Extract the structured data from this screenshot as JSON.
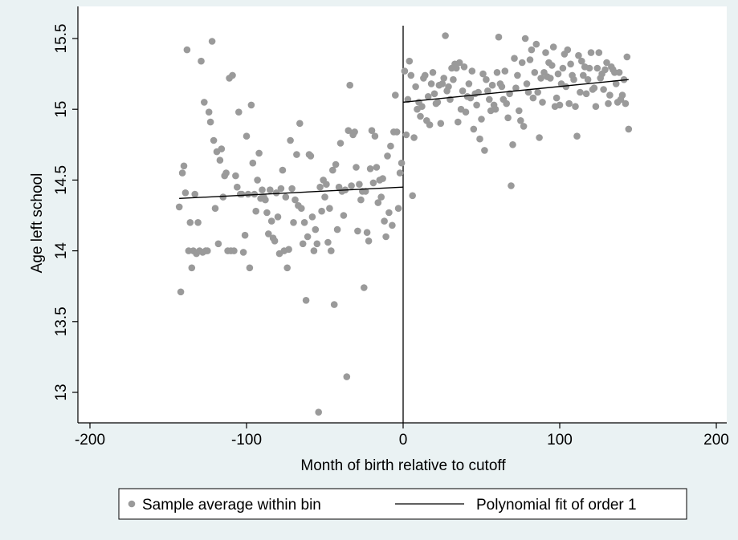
{
  "chart_data": {
    "type": "scatter",
    "title": "",
    "xlabel": "Month of birth relative to cutoff",
    "ylabel": "Age left school",
    "xlim": [
      -200,
      200
    ],
    "ylim": [
      12.86,
      15.5
    ],
    "x_ticks": [
      -200,
      -100,
      0,
      100,
      200
    ],
    "x_tick_labels": [
      "-200",
      "-100",
      "0",
      "100",
      "200"
    ],
    "y_ticks": [
      13,
      13.5,
      14,
      14.5,
      15,
      15.5
    ],
    "y_tick_labels": [
      "13",
      "13.5",
      "14",
      "14.5",
      "15",
      "15.5"
    ],
    "cutoff_line_x": 0,
    "grid": false,
    "legend_position": "bottom",
    "colors": {
      "points": "#9a9a9a",
      "fit": "#000000",
      "plot_bg": "#ffffff",
      "page_bg": "#eaf2f3"
    },
    "series": [
      {
        "name": "Sample average within bin",
        "kind": "scatter",
        "points": [
          [
            -143,
            14.31
          ],
          [
            -142,
            13.71
          ],
          [
            -141,
            14.55
          ],
          [
            -140,
            14.6
          ],
          [
            -139,
            14.41
          ],
          [
            -138,
            15.42
          ],
          [
            -137,
            14.0
          ],
          [
            -136,
            14.2
          ],
          [
            -135,
            13.88
          ],
          [
            -134,
            14.0
          ],
          [
            -133,
            14.4
          ],
          [
            -132,
            13.98
          ],
          [
            -131,
            14.2
          ],
          [
            -130,
            14.0
          ],
          [
            -129,
            15.34
          ],
          [
            -128,
            13.99
          ],
          [
            -127,
            15.05
          ],
          [
            -126,
            14.0
          ],
          [
            -125,
            14.0
          ],
          [
            -124,
            14.98
          ],
          [
            -123,
            14.91
          ],
          [
            -122,
            15.48
          ],
          [
            -121,
            14.78
          ],
          [
            -120,
            14.3
          ],
          [
            -119,
            14.7
          ],
          [
            -118,
            14.05
          ],
          [
            -117,
            14.64
          ],
          [
            -116,
            14.72
          ],
          [
            -115,
            14.38
          ],
          [
            -114,
            14.53
          ],
          [
            -113,
            14.55
          ],
          [
            -112,
            14.0
          ],
          [
            -111,
            15.22
          ],
          [
            -110,
            14.0
          ],
          [
            -109,
            15.24
          ],
          [
            -108,
            14.0
          ],
          [
            -107,
            14.53
          ],
          [
            -106,
            14.45
          ],
          [
            -105,
            14.98
          ],
          [
            -104,
            14.4
          ],
          [
            -103,
            14.4
          ],
          [
            -102,
            13.99
          ],
          [
            -101,
            14.11
          ],
          [
            -100,
            14.81
          ],
          [
            -99,
            14.4
          ],
          [
            -98,
            13.88
          ],
          [
            -97,
            15.03
          ],
          [
            -96,
            14.62
          ],
          [
            -95,
            14.4
          ],
          [
            -94,
            14.28
          ],
          [
            -93,
            14.5
          ],
          [
            -92,
            14.69
          ],
          [
            -91,
            14.37
          ],
          [
            -90,
            14.43
          ],
          [
            -89,
            14.38
          ],
          [
            -88,
            14.36
          ],
          [
            -87,
            14.27
          ],
          [
            -86,
            14.12
          ],
          [
            -85,
            14.43
          ],
          [
            -84,
            14.21
          ],
          [
            -83,
            14.09
          ],
          [
            -82,
            14.07
          ],
          [
            -81,
            14.41
          ],
          [
            -80,
            14.24
          ],
          [
            -79,
            13.98
          ],
          [
            -78,
            14.44
          ],
          [
            -77,
            14.57
          ],
          [
            -76,
            14.0
          ],
          [
            -75,
            14.38
          ],
          [
            -74,
            13.88
          ],
          [
            -73,
            14.01
          ],
          [
            -72,
            14.78
          ],
          [
            -71,
            14.44
          ],
          [
            -70,
            14.2
          ],
          [
            -69,
            14.36
          ],
          [
            -68,
            14.68
          ],
          [
            -67,
            14.32
          ],
          [
            -66,
            14.9
          ],
          [
            -65,
            14.3
          ],
          [
            -64,
            14.05
          ],
          [
            -63,
            14.2
          ],
          [
            -62,
            13.65
          ],
          [
            -61,
            14.1
          ],
          [
            -60,
            14.68
          ],
          [
            -59,
            14.67
          ],
          [
            -58,
            14.24
          ],
          [
            -57,
            14.0
          ],
          [
            -56,
            14.15
          ],
          [
            -55,
            14.05
          ],
          [
            -54,
            12.86
          ],
          [
            -53,
            14.45
          ],
          [
            -52,
            14.28
          ],
          [
            -51,
            14.5
          ],
          [
            -50,
            14.38
          ],
          [
            -49,
            14.47
          ],
          [
            -48,
            14.06
          ],
          [
            -47,
            14.3
          ],
          [
            -46,
            14.0
          ],
          [
            -45,
            14.57
          ],
          [
            -44,
            13.62
          ],
          [
            -43,
            14.61
          ],
          [
            -42,
            14.15
          ],
          [
            -41,
            14.45
          ],
          [
            -40,
            14.76
          ],
          [
            -39,
            14.42
          ],
          [
            -38,
            14.25
          ],
          [
            -37,
            14.43
          ],
          [
            -36,
            13.11
          ],
          [
            -35,
            14.85
          ],
          [
            -34,
            15.17
          ],
          [
            -33,
            14.46
          ],
          [
            -32,
            14.82
          ],
          [
            -31,
            14.84
          ],
          [
            -30,
            14.59
          ],
          [
            -29,
            14.14
          ],
          [
            -28,
            14.47
          ],
          [
            -27,
            14.36
          ],
          [
            -26,
            14.42
          ],
          [
            -25,
            13.74
          ],
          [
            -24,
            14.42
          ],
          [
            -23,
            14.13
          ],
          [
            -22,
            14.07
          ],
          [
            -21,
            14.58
          ],
          [
            -20,
            14.85
          ],
          [
            -19,
            14.48
          ],
          [
            -18,
            14.81
          ],
          [
            -17,
            14.59
          ],
          [
            -16,
            14.34
          ],
          [
            -15,
            14.5
          ],
          [
            -14,
            14.38
          ],
          [
            -13,
            14.51
          ],
          [
            -12,
            14.21
          ],
          [
            -11,
            14.1
          ],
          [
            -10,
            14.67
          ],
          [
            -9,
            14.27
          ],
          [
            -8,
            14.74
          ],
          [
            -7,
            14.18
          ],
          [
            -6,
            14.84
          ],
          [
            -5,
            15.1
          ],
          [
            -4,
            14.84
          ],
          [
            -3,
            14.3
          ],
          [
            -2,
            14.55
          ],
          [
            -1,
            14.62
          ],
          [
            1,
            15.27
          ],
          [
            2,
            14.82
          ],
          [
            3,
            15.07
          ],
          [
            4,
            15.34
          ],
          [
            5,
            15.24
          ],
          [
            6,
            14.39
          ],
          [
            7,
            14.8
          ],
          [
            8,
            15.16
          ],
          [
            9,
            15.0
          ],
          [
            10,
            15.05
          ],
          [
            11,
            14.95
          ],
          [
            12,
            15.02
          ],
          [
            13,
            15.22
          ],
          [
            14,
            15.24
          ],
          [
            15,
            14.92
          ],
          [
            16,
            15.09
          ],
          [
            17,
            14.89
          ],
          [
            18,
            15.18
          ],
          [
            19,
            15.26
          ],
          [
            20,
            15.11
          ],
          [
            21,
            15.04
          ],
          [
            22,
            15.05
          ],
          [
            23,
            15.17
          ],
          [
            24,
            14.9
          ],
          [
            25,
            15.18
          ],
          [
            26,
            15.22
          ],
          [
            27,
            15.52
          ],
          [
            28,
            15.13
          ],
          [
            29,
            15.16
          ],
          [
            30,
            15.07
          ],
          [
            31,
            15.29
          ],
          [
            32,
            15.21
          ],
          [
            33,
            15.32
          ],
          [
            34,
            15.29
          ],
          [
            35,
            14.91
          ],
          [
            36,
            15.33
          ],
          [
            37,
            15.0
          ],
          [
            38,
            15.13
          ],
          [
            39,
            15.3
          ],
          [
            40,
            14.98
          ],
          [
            41,
            15.09
          ],
          [
            42,
            15.18
          ],
          [
            43,
            15.08
          ],
          [
            44,
            15.27
          ],
          [
            45,
            14.86
          ],
          [
            46,
            15.11
          ],
          [
            47,
            15.03
          ],
          [
            48,
            15.12
          ],
          [
            49,
            14.79
          ],
          [
            50,
            14.93
          ],
          [
            51,
            15.25
          ],
          [
            52,
            14.71
          ],
          [
            53,
            15.21
          ],
          [
            54,
            15.13
          ],
          [
            55,
            15.07
          ],
          [
            56,
            14.99
          ],
          [
            57,
            15.17
          ],
          [
            58,
            15.03
          ],
          [
            59,
            15.0
          ],
          [
            60,
            15.26
          ],
          [
            61,
            15.51
          ],
          [
            62,
            15.18
          ],
          [
            63,
            15.16
          ],
          [
            64,
            15.07
          ],
          [
            65,
            15.27
          ],
          [
            66,
            15.04
          ],
          [
            67,
            14.94
          ],
          [
            68,
            15.11
          ],
          [
            69,
            14.46
          ],
          [
            70,
            14.75
          ],
          [
            71,
            15.36
          ],
          [
            72,
            15.15
          ],
          [
            73,
            15.24
          ],
          [
            74,
            14.99
          ],
          [
            75,
            14.92
          ],
          [
            76,
            15.33
          ],
          [
            77,
            14.88
          ],
          [
            78,
            15.5
          ],
          [
            79,
            15.18
          ],
          [
            80,
            15.12
          ],
          [
            81,
            15.35
          ],
          [
            82,
            15.42
          ],
          [
            83,
            15.08
          ],
          [
            84,
            15.26
          ],
          [
            85,
            15.46
          ],
          [
            86,
            15.12
          ],
          [
            87,
            14.8
          ],
          [
            88,
            15.22
          ],
          [
            89,
            15.05
          ],
          [
            90,
            15.26
          ],
          [
            91,
            15.4
          ],
          [
            92,
            15.23
          ],
          [
            93,
            15.33
          ],
          [
            94,
            15.22
          ],
          [
            95,
            15.31
          ],
          [
            96,
            15.44
          ],
          [
            97,
            15.02
          ],
          [
            98,
            15.08
          ],
          [
            99,
            15.25
          ],
          [
            100,
            15.03
          ],
          [
            101,
            15.18
          ],
          [
            102,
            15.29
          ],
          [
            103,
            15.39
          ],
          [
            104,
            15.16
          ],
          [
            105,
            15.42
          ],
          [
            106,
            15.04
          ],
          [
            107,
            15.32
          ],
          [
            108,
            15.24
          ],
          [
            109,
            15.21
          ],
          [
            110,
            15.02
          ],
          [
            111,
            14.81
          ],
          [
            112,
            15.38
          ],
          [
            113,
            15.12
          ],
          [
            114,
            15.34
          ],
          [
            115,
            15.24
          ],
          [
            116,
            15.3
          ],
          [
            117,
            15.11
          ],
          [
            118,
            15.21
          ],
          [
            119,
            15.29
          ],
          [
            120,
            15.4
          ],
          [
            121,
            15.14
          ],
          [
            122,
            15.15
          ],
          [
            123,
            15.02
          ],
          [
            124,
            15.29
          ],
          [
            125,
            15.4
          ],
          [
            126,
            15.22
          ],
          [
            127,
            15.25
          ],
          [
            128,
            15.14
          ],
          [
            129,
            15.28
          ],
          [
            130,
            15.33
          ],
          [
            131,
            15.04
          ],
          [
            132,
            15.1
          ],
          [
            133,
            15.3
          ],
          [
            134,
            15.28
          ],
          [
            135,
            15.26
          ],
          [
            136,
            15.18
          ],
          [
            137,
            15.05
          ],
          [
            138,
            15.26
          ],
          [
            139,
            15.07
          ],
          [
            140,
            15.1
          ],
          [
            141,
            15.21
          ],
          [
            142,
            15.04
          ],
          [
            143,
            15.37
          ],
          [
            144,
            14.86
          ]
        ]
      },
      {
        "name": "Polynomial fit of order 1",
        "kind": "line",
        "segments": [
          [
            [
              -143,
              14.37
            ],
            [
              0,
              14.45
            ]
          ],
          [
            [
              0,
              15.05
            ],
            [
              144,
              15.21
            ]
          ]
        ]
      }
    ]
  }
}
